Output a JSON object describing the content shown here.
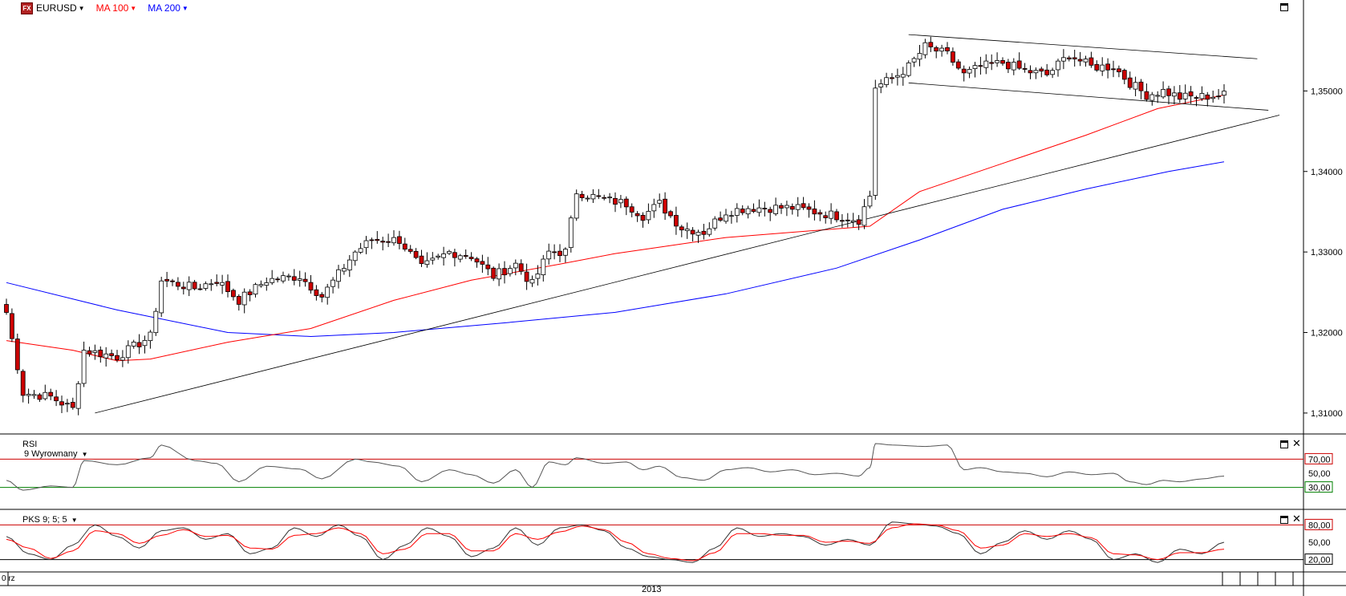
{
  "header": {
    "logo_text": "FX",
    "symbol": "EURUSD",
    "ma100_label": "MA 100",
    "ma200_label": "MA 200"
  },
  "colors": {
    "up_candle": "#ffffff",
    "down_candle": "#cc0000",
    "ma100": "#ff0000",
    "ma200": "#0000ff",
    "trendline": "#000000",
    "rsi_upper": "#cc0000",
    "rsi_lower": "#008000",
    "pks_k": "#333333",
    "pks_d": "#ff0000"
  },
  "panes": {
    "rsi_title": "RSI",
    "rsi_subtitle": "9 Wyrownany",
    "pks_title": "PKS 9; 5; 5"
  },
  "x_axis": {
    "year_label": "2013",
    "left_label": "0 rz"
  },
  "chart_data": [
    {
      "type": "candlestick",
      "title": "EURUSD",
      "ylim": [
        1.3075,
        1.3595
      ],
      "y_ticks": [
        "1,31000",
        "1,32000",
        "1,33000",
        "1,34000",
        "1,35000"
      ],
      "y_tick_values": [
        1.31,
        1.32,
        1.33,
        1.34,
        1.35
      ],
      "trend_anchors": [
        [
          0,
          1.3225
        ],
        [
          3,
          1.3125
        ],
        [
          8,
          1.312
        ],
        [
          12,
          1.3105
        ],
        [
          14,
          1.3178
        ],
        [
          20,
          1.317
        ],
        [
          26,
          1.3195
        ],
        [
          28,
          1.3265
        ],
        [
          34,
          1.3255
        ],
        [
          38,
          1.3265
        ],
        [
          42,
          1.324
        ],
        [
          47,
          1.3265
        ],
        [
          53,
          1.327
        ],
        [
          57,
          1.3245
        ],
        [
          63,
          1.33
        ],
        [
          66,
          1.3315
        ],
        [
          71,
          1.3315
        ],
        [
          75,
          1.328
        ],
        [
          80,
          1.33
        ],
        [
          84,
          1.3295
        ],
        [
          88,
          1.327
        ],
        [
          92,
          1.3285
        ],
        [
          95,
          1.326
        ],
        [
          98,
          1.33
        ],
        [
          101,
          1.33
        ],
        [
          103,
          1.3375
        ],
        [
          108,
          1.3365
        ],
        [
          112,
          1.336
        ],
        [
          115,
          1.3345
        ],
        [
          118,
          1.336
        ],
        [
          122,
          1.333
        ],
        [
          126,
          1.3325
        ],
        [
          130,
          1.335
        ],
        [
          134,
          1.3355
        ],
        [
          138,
          1.3355
        ],
        [
          142,
          1.3355
        ],
        [
          146,
          1.335
        ],
        [
          150,
          1.3345
        ],
        [
          154,
          1.334
        ],
        [
          156,
          1.337
        ],
        [
          157,
          1.3505
        ],
        [
          160,
          1.3515
        ],
        [
          163,
          1.353
        ],
        [
          166,
          1.3555
        ],
        [
          170,
          1.3545
        ],
        [
          173,
          1.352
        ],
        [
          176,
          1.353
        ],
        [
          180,
          1.3535
        ],
        [
          184,
          1.3525
        ],
        [
          188,
          1.352
        ],
        [
          192,
          1.3545
        ],
        [
          196,
          1.353
        ],
        [
          200,
          1.353
        ],
        [
          203,
          1.351
        ],
        [
          206,
          1.3495
        ],
        [
          209,
          1.35
        ],
        [
          212,
          1.3492
        ],
        [
          216,
          1.3493
        ],
        [
          220,
          1.3495
        ]
      ],
      "series": [
        {
          "name": "MA 100",
          "color": "#ff0000",
          "x": [
            0,
            12,
            20,
            26,
            40,
            55,
            70,
            84,
            100,
            110,
            120,
            130,
            143,
            156,
            165,
            180,
            195,
            208,
            220
          ],
          "y": [
            1.319,
            1.3178,
            1.3165,
            1.3167,
            1.3188,
            1.3205,
            1.324,
            1.3265,
            1.3285,
            1.3298,
            1.3308,
            1.3318,
            1.3325,
            1.3332,
            1.3375,
            1.341,
            1.3445,
            1.3478,
            1.3495
          ]
        },
        {
          "name": "MA 200",
          "color": "#0000ff",
          "x": [
            0,
            20,
            40,
            55,
            70,
            90,
            110,
            130,
            150,
            165,
            180,
            195,
            210,
            220
          ],
          "y": [
            1.3262,
            1.3228,
            1.32,
            1.3195,
            1.32,
            1.3212,
            1.3225,
            1.3248,
            1.328,
            1.3315,
            1.3353,
            1.3378,
            1.34,
            1.3412
          ]
        }
      ],
      "lines": [
        {
          "name": "support-trendline",
          "x1": 16,
          "y1": 1.31,
          "x2": 230,
          "y2": 1.347
        },
        {
          "name": "channel-upper",
          "x1": 163,
          "y1": 1.357,
          "x2": 226,
          "y2": 1.354
        },
        {
          "name": "channel-lower",
          "x1": 163,
          "y1": 1.351,
          "x2": 228,
          "y2": 1.3476
        }
      ]
    },
    {
      "type": "line",
      "title": "RSI",
      "subtitle": "9 Wyrownany",
      "ylim": [
        0,
        100
      ],
      "levels": [
        70,
        30
      ],
      "y_ticks": [
        "70,00",
        "50,00",
        "30,00"
      ],
      "y_tick_values": [
        70,
        50,
        30
      ],
      "series": [
        {
          "name": "RSI",
          "x": [
            0,
            3,
            8,
            12,
            14,
            20,
            26,
            28,
            34,
            38,
            42,
            47,
            53,
            57,
            63,
            66,
            71,
            75,
            80,
            84,
            88,
            92,
            95,
            98,
            101,
            103,
            108,
            112,
            115,
            118,
            122,
            126,
            130,
            134,
            138,
            142,
            146,
            150,
            154,
            156,
            157,
            160,
            166,
            170,
            173,
            176,
            180,
            184,
            188,
            192,
            196,
            200,
            203,
            206,
            209,
            212,
            216,
            220
          ],
          "y": [
            40,
            26,
            32,
            30,
            68,
            62,
            72,
            90,
            68,
            64,
            38,
            60,
            56,
            42,
            70,
            66,
            60,
            38,
            55,
            48,
            36,
            55,
            30,
            66,
            62,
            72,
            64,
            66,
            55,
            60,
            44,
            40,
            55,
            58,
            52,
            55,
            48,
            50,
            46,
            58,
            92,
            90,
            88,
            90,
            55,
            58,
            52,
            50,
            45,
            52,
            48,
            50,
            38,
            34,
            40,
            38,
            42,
            46
          ]
        }
      ]
    },
    {
      "type": "line",
      "title": "PKS 9; 5; 5",
      "ylim": [
        0,
        100
      ],
      "levels": [
        80,
        20
      ],
      "y_ticks": [
        "80,00",
        "50,00",
        "20,00"
      ],
      "y_tick_values": [
        80,
        50,
        20
      ],
      "series": [
        {
          "name": "%K",
          "x": [
            0,
            4,
            8,
            12,
            16,
            20,
            24,
            28,
            32,
            36,
            40,
            44,
            48,
            52,
            56,
            60,
            64,
            68,
            72,
            76,
            80,
            84,
            88,
            92,
            96,
            100,
            104,
            108,
            112,
            116,
            120,
            124,
            128,
            132,
            136,
            140,
            144,
            148,
            152,
            156,
            160,
            164,
            168,
            172,
            176,
            180,
            184,
            188,
            192,
            196,
            200,
            204,
            208,
            212,
            216,
            220
          ],
          "y": [
            60,
            30,
            20,
            45,
            80,
            60,
            40,
            70,
            75,
            55,
            65,
            30,
            40,
            75,
            60,
            80,
            60,
            20,
            45,
            75,
            60,
            25,
            40,
            75,
            45,
            75,
            80,
            70,
            40,
            25,
            20,
            15,
            40,
            75,
            60,
            65,
            60,
            45,
            55,
            45,
            85,
            82,
            78,
            65,
            30,
            50,
            70,
            55,
            70,
            55,
            20,
            30,
            15,
            38,
            30,
            50
          ]
        },
        {
          "name": "%D",
          "x": [
            0,
            4,
            8,
            12,
            16,
            20,
            24,
            28,
            32,
            36,
            40,
            44,
            48,
            52,
            56,
            60,
            64,
            68,
            72,
            76,
            80,
            84,
            88,
            92,
            96,
            100,
            104,
            108,
            112,
            116,
            120,
            124,
            128,
            132,
            136,
            140,
            144,
            148,
            152,
            156,
            160,
            164,
            168,
            172,
            176,
            180,
            184,
            188,
            192,
            196,
            200,
            204,
            208,
            212,
            216,
            220
          ],
          "y": [
            55,
            40,
            22,
            35,
            70,
            65,
            48,
            62,
            72,
            60,
            62,
            40,
            38,
            62,
            65,
            75,
            65,
            30,
            38,
            65,
            65,
            35,
            35,
            65,
            55,
            68,
            78,
            72,
            50,
            30,
            22,
            18,
            32,
            65,
            65,
            62,
            62,
            50,
            52,
            48,
            75,
            82,
            80,
            70,
            40,
            45,
            65,
            60,
            65,
            58,
            30,
            28,
            20,
            32,
            32,
            38
          ]
        }
      ]
    }
  ]
}
